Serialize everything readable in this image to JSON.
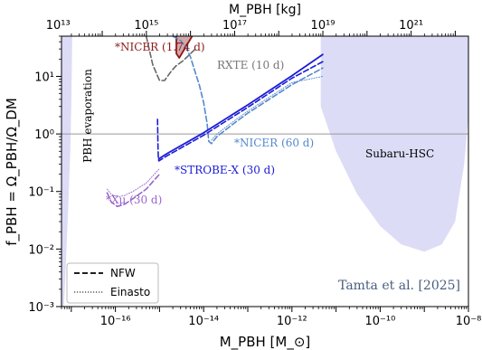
{
  "chart_data": {
    "type": "line",
    "xscale": "log",
    "yscale": "log",
    "xlabel": "M_PBH [M_⊙]",
    "ylabel": "f_PBH = Ω_PBH/Ω_DM",
    "top_axis_label": "M_PBH [kg]",
    "xlim": [
      6e-18,
      1e-08
    ],
    "ylim": [
      0.001,
      50
    ],
    "x_ticks": [
      {
        "value": 1e-16,
        "label": "10⁻¹⁶"
      },
      {
        "value": 1e-14,
        "label": "10⁻¹⁴"
      },
      {
        "value": 1e-12,
        "label": "10⁻¹²"
      },
      {
        "value": 1e-10,
        "label": "10⁻¹⁰"
      },
      {
        "value": 1e-08,
        "label": "10⁻⁸"
      }
    ],
    "y_ticks": [
      {
        "value": 0.001,
        "label": "10⁻³"
      },
      {
        "value": 0.01,
        "label": "10⁻²"
      },
      {
        "value": 0.1,
        "label": "10⁻¹"
      },
      {
        "value": 1,
        "label": "10⁰"
      },
      {
        "value": 10,
        "label": "10¹"
      }
    ],
    "top_ticks": [
      {
        "value_kg": 10000000000000.0,
        "label": "10¹³"
      },
      {
        "value_kg": 1000000000000000.0,
        "label": "10¹⁵"
      },
      {
        "value_kg": 1e+17,
        "label": "10¹⁷"
      },
      {
        "value_kg": 1e+19,
        "label": "10¹⁹"
      },
      {
        "value_kg": 1e+21,
        "label": "10²¹"
      }
    ],
    "reference_line": {
      "y": 1.0,
      "color": "#999999"
    },
    "excluded_regions": [
      {
        "name": "PBH evaporation",
        "color": "#dcdcf7",
        "boundary": [
          [
            6e-18,
            50
          ],
          [
            1.05e-17,
            50
          ],
          [
            1e-17,
            3
          ],
          [
            9.5e-18,
            0.5
          ],
          [
            8.5e-18,
            0.05
          ],
          [
            7.5e-18,
            0.005
          ],
          [
            6.8e-18,
            0.001
          ],
          [
            6e-18,
            0.001
          ]
        ]
      },
      {
        "name": "Subaru-HSC",
        "color": "#dcdcf7",
        "boundary": [
          [
            4.5e-12,
            50
          ],
          [
            4.5e-12,
            3
          ],
          [
            1e-11,
            0.5
          ],
          [
            3e-11,
            0.09
          ],
          [
            1e-10,
            0.025
          ],
          [
            3e-10,
            0.012
          ],
          [
            1e-09,
            0.009
          ],
          [
            2.5e-09,
            0.012
          ],
          [
            5e-09,
            0.03
          ],
          [
            8e-09,
            0.3
          ],
          [
            1e-08,
            2
          ],
          [
            1e-08,
            50
          ]
        ]
      },
      {
        "name": "*NICER (1.74 d)",
        "color": "#d4a8a8",
        "boundary": [
          [
            2.4e-15,
            50
          ],
          [
            2.4e-15,
            25
          ],
          [
            2.8e-15,
            21
          ],
          [
            5.5e-15,
            50
          ]
        ]
      }
    ],
    "series": [
      {
        "name": "*NICER (1.74 d)",
        "color": "#8b1a1a",
        "style": "solid",
        "x": [
          2.4e-15,
          2.4e-15,
          2.8e-15,
          5.5e-15
        ],
        "y": [
          50,
          25,
          21,
          50
        ]
      },
      {
        "name": "RXTE (10 d)",
        "color": "#666666",
        "style": "dashed",
        "x": [
          5e-16,
          7e-16,
          1e-15,
          1.3e-15,
          1.8e-15,
          2.3e-15,
          3.5e-15,
          6.5e-15
        ],
        "y": [
          50,
          16,
          8.5,
          8.5,
          12,
          15,
          19,
          30
        ]
      },
      {
        "name": "*NICER (60 d)",
        "color": "#5588cc",
        "style": "dashed",
        "x": [
          2e-15,
          3e-15,
          4e-15,
          5e-15,
          6e-15,
          8e-15,
          1e-14,
          1.2e-14,
          1.3e-14,
          1.5e-14,
          2e-14,
          5e-14,
          1e-13,
          1e-12,
          5e-12
        ],
        "y": [
          50,
          42,
          32,
          22,
          14,
          7,
          3.5,
          1.5,
          0.75,
          0.68,
          0.9,
          1.55,
          2.3,
          7.2,
          14
        ]
      },
      {
        "name": "*NICER (60 d)",
        "color": "#5588cc",
        "style": "dotted",
        "x": [
          1.5e-14,
          2e-14,
          5e-14,
          1e-13,
          1e-12,
          5e-12
        ],
        "y": [
          0.78,
          1.0,
          1.7,
          2.5,
          7.8,
          10
        ]
      },
      {
        "name": "*STROBE-X (30 d)",
        "color": "#1b1bd6",
        "style": "dashed",
        "x": [
          9e-16,
          9.2e-16,
          9.4e-16,
          9.6e-16,
          1.5e-15,
          1e-14,
          1e-13,
          1e-12,
          5e-12
        ],
        "y": [
          1.8,
          0.6,
          0.38,
          0.34,
          0.42,
          0.95,
          2.9,
          9.3,
          18
        ]
      },
      {
        "name": "*STROBE-X (30 d)",
        "color": "#1b1bd6",
        "style": "solid",
        "x": [
          9.6e-16,
          1.5e-15,
          1e-14,
          1e-13,
          1e-12,
          5e-12
        ],
        "y": [
          0.37,
          0.46,
          1.05,
          3.2,
          10.3,
          24
        ]
      },
      {
        "name": "*Xμ (30 d)",
        "color": "#9966cc",
        "style": "dashed",
        "x": [
          6.5e-17,
          8e-17,
          1.1e-16,
          1.6e-16,
          2.5e-16,
          5e-16,
          1e-15
        ],
        "y": [
          0.095,
          0.066,
          0.055,
          0.06,
          0.075,
          0.11,
          0.2
        ]
      },
      {
        "name": "*Xμ (30 d)",
        "color": "#9966cc",
        "style": "dotted",
        "x": [
          6.5e-17,
          8e-17,
          1.1e-16,
          1.6e-16,
          2.5e-16,
          5e-16,
          1e-15
        ],
        "y": [
          0.11,
          0.09,
          0.08,
          0.085,
          0.1,
          0.14,
          0.25
        ]
      }
    ],
    "annotations": [
      {
        "text": "PBH evaporation",
        "color": "#000000"
      },
      {
        "text": "*NICER (1.74 d)",
        "color": "#8b1a1a"
      },
      {
        "text": "RXTE (10 d)",
        "color": "#777777"
      },
      {
        "text": "*NICER (60 d)",
        "color": "#5588cc"
      },
      {
        "text": "Subaru-HSC",
        "color": "#000000"
      },
      {
        "text": "*STROBE-X (30 d)",
        "color": "#1b1bd6"
      },
      {
        "text": "*Xμ (30 d)",
        "color": "#9966cc"
      }
    ],
    "legend": {
      "placement": "lower-left",
      "entries": [
        {
          "label": "NFW",
          "style": "dashed"
        },
        {
          "label": "Einasto",
          "style": "dotted"
        }
      ]
    },
    "credit": {
      "text": "Tamta et al. [2025]",
      "color": "#4a5d80"
    }
  }
}
